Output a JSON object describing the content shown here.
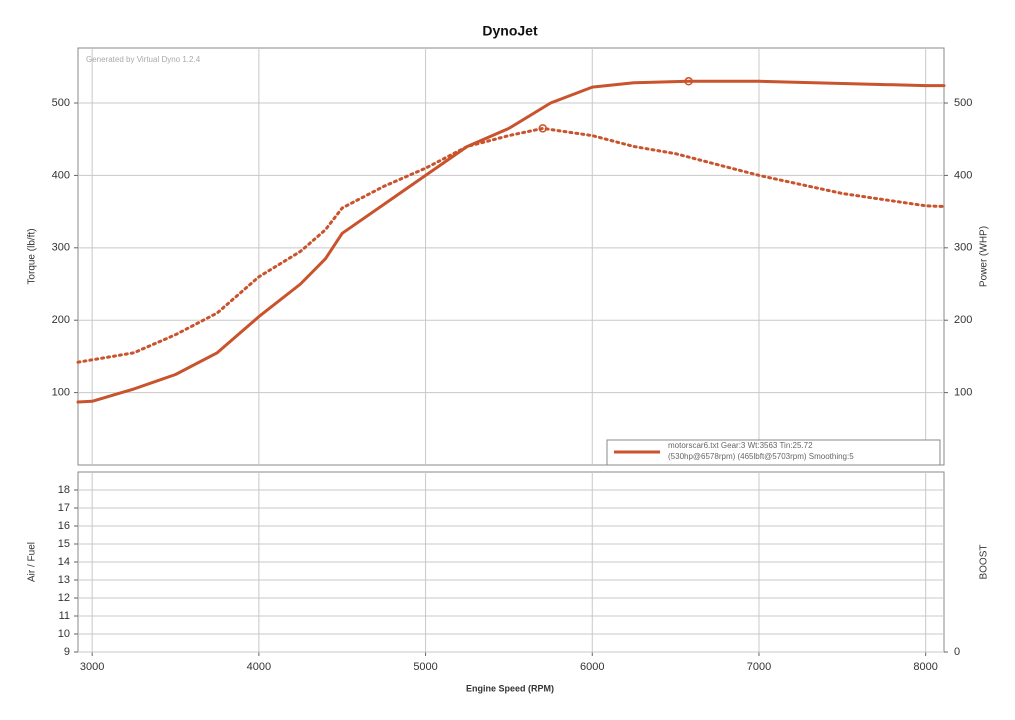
{
  "chart_data": [
    {
      "type": "line",
      "title": "DynoJet",
      "watermark": "Generated by Virtual Dyno 1.2.4",
      "ylabel": "Torque (lb/ft)",
      "y2label": "Power (WHP)",
      "xlim": [
        2915,
        8110
      ],
      "xticks": [
        3000,
        4000,
        5000,
        6000,
        7000,
        8000
      ],
      "ylim": [
        0,
        576
      ],
      "yticks": [
        100,
        200,
        300,
        400,
        500
      ],
      "y2lim": [
        0,
        576
      ],
      "y2ticks": [
        100,
        200,
        300,
        400,
        500
      ],
      "grid": true,
      "legend": [
        "motorscar6.txt Gear:3 Wt:3563 Tin:25.72",
        "(530hp@6578rpm) (465lbft@5703rpm) Smoothing:5"
      ],
      "series": [
        {
          "color": "#c8532c",
          "style": "solid",
          "axis": "y2",
          "x": [
            2915,
            3000,
            3250,
            3500,
            3750,
            4000,
            4250,
            4400,
            4500,
            4750,
            5000,
            5250,
            5500,
            5750,
            6000,
            6250,
            6578,
            7000,
            7500,
            8000,
            8110
          ],
          "values": [
            87,
            88,
            105,
            125,
            155,
            205,
            250,
            285,
            320,
            360,
            400,
            440,
            465,
            500,
            522,
            528,
            530,
            530,
            527,
            524,
            524
          ]
        },
        {
          "color": "#c8532c",
          "style": "dotted",
          "axis": "y",
          "x": [
            2915,
            3250,
            3500,
            3750,
            4000,
            4250,
            4400,
            4500,
            4750,
            5000,
            5250,
            5500,
            5703,
            6000,
            6250,
            6500,
            7000,
            7500,
            8000,
            8110
          ],
          "values": [
            142,
            155,
            180,
            210,
            260,
            295,
            325,
            355,
            385,
            410,
            440,
            455,
            465,
            455,
            440,
            430,
            400,
            375,
            358,
            357
          ]
        }
      ]
    },
    {
      "type": "line",
      "xlabel": "Engine Speed (RPM)",
      "ylabel": "Air / Fuel",
      "y2label": "BOOST",
      "xlim": [
        2915,
        8110
      ],
      "xticks": [
        3000,
        4000,
        5000,
        6000,
        7000,
        8000
      ],
      "ylim": [
        9,
        19
      ],
      "yticks": [
        9,
        10,
        11,
        12,
        13,
        14,
        15,
        16,
        17,
        18
      ],
      "y2lim": [
        0,
        10
      ],
      "y2ticks": [
        0
      ],
      "grid": true,
      "series": []
    }
  ]
}
